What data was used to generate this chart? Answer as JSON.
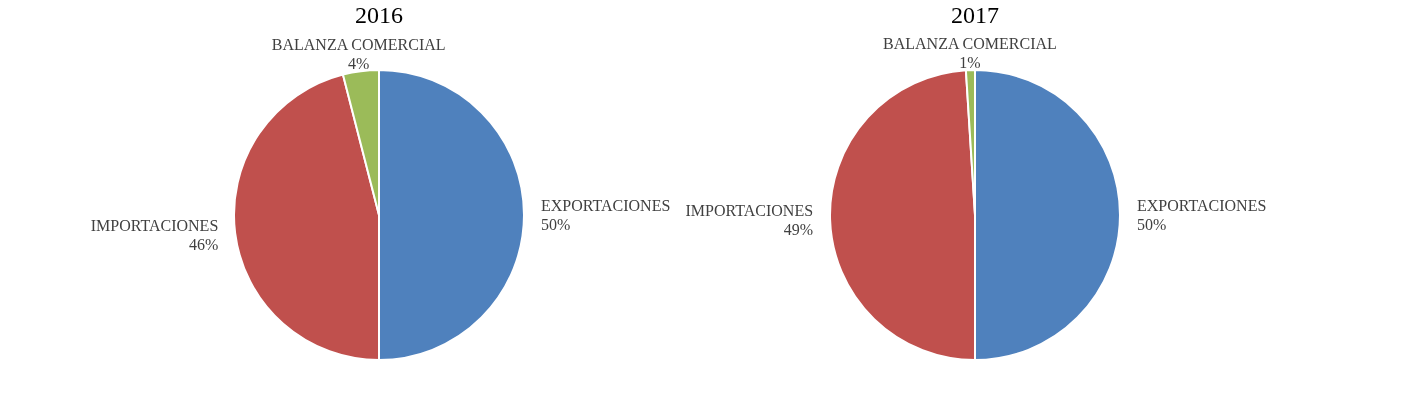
{
  "chart_data": [
    {
      "type": "pie",
      "title": "2016",
      "categories": [
        "EXPORTACIONES",
        "IMPORTACIONES",
        "BALANZA COMERCIAL"
      ],
      "values": [
        50,
        46,
        4
      ],
      "value_labels": [
        "50%",
        "46%",
        "4%"
      ],
      "colors": [
        "#4f81bd",
        "#c0504d",
        "#9bbb59"
      ]
    },
    {
      "type": "pie",
      "title": "2017",
      "categories": [
        "EXPORTACIONES",
        "IMPORTACIONES",
        "BALANZA COMERCIAL"
      ],
      "values": [
        50,
        49,
        1
      ],
      "value_labels": [
        "50%",
        "49%",
        "1%"
      ],
      "colors": [
        "#4f81bd",
        "#c0504d",
        "#9bbb59"
      ]
    }
  ]
}
